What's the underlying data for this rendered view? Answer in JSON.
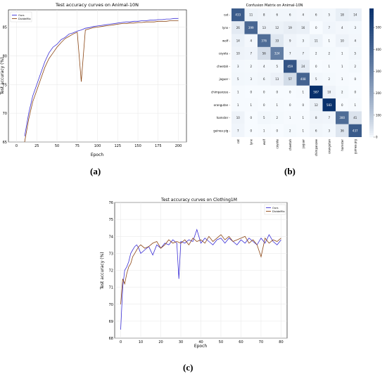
{
  "captions": {
    "a": "(a)",
    "b": "(b)",
    "c": "(c)"
  },
  "chart_data": [
    {
      "type": "line",
      "title": "Test accuracy curves on Animal-10N",
      "xlabel": "Epoch",
      "ylabel": "Test accuracy (%)",
      "xlim": [
        -10,
        210
      ],
      "ylim": [
        65,
        88
      ],
      "xticks": [
        0,
        25,
        50,
        75,
        100,
        125,
        150,
        175,
        200
      ],
      "yticks": [
        65,
        70,
        75,
        80,
        85
      ],
      "legend": "top-left",
      "series": [
        {
          "name": "Ours",
          "color": "#3b2fd6",
          "x": [
            10,
            15,
            20,
            25,
            30,
            35,
            40,
            45,
            50,
            55,
            60,
            65,
            70,
            75,
            80,
            85,
            90,
            95,
            100,
            105,
            110,
            115,
            120,
            125,
            130,
            135,
            140,
            145,
            150,
            155,
            160,
            165,
            170,
            175,
            180,
            185,
            190,
            195,
            200
          ],
          "y": [
            66,
            70,
            73,
            75,
            77,
            79,
            80.5,
            81.5,
            82,
            82.8,
            83.2,
            83.8,
            84,
            84.3,
            84.5,
            84.8,
            84.9,
            85.1,
            85.2,
            85.3,
            85.4,
            85.5,
            85.6,
            85.7,
            85.8,
            85.9,
            85.9,
            86,
            86,
            86.1,
            86.1,
            86.2,
            86.2,
            86.3,
            86.3,
            86.4,
            86.4,
            86.5,
            86.5
          ]
        },
        {
          "name": "DivideMix",
          "color": "#8b4513",
          "x": [
            10,
            15,
            20,
            25,
            30,
            35,
            40,
            45,
            50,
            55,
            60,
            65,
            70,
            75,
            80,
            85,
            90,
            95,
            100,
            105,
            110,
            115,
            120,
            125,
            130,
            135,
            140,
            145,
            150,
            155,
            160,
            165,
            170,
            175,
            180,
            185,
            190,
            195,
            200
          ],
          "y": [
            65,
            69,
            72,
            74,
            76,
            78,
            79.5,
            80.5,
            81.5,
            82.3,
            83,
            83.4,
            83.8,
            84.1,
            75.5,
            84.5,
            84.7,
            84.9,
            85,
            85.1,
            85.2,
            85.3,
            85.4,
            85.5,
            85.6,
            85.6,
            85.7,
            85.7,
            85.8,
            85.8,
            85.9,
            85.9,
            85.9,
            86,
            86,
            86,
            86.1,
            86.1,
            86.1
          ]
        }
      ]
    },
    {
      "type": "heatmap",
      "title": "Confusion Matrix on Animal-10N",
      "labels": [
        "cat",
        "lynx",
        "wolf",
        "coyote",
        "cheetah",
        "jaguar",
        "chimpanzee",
        "orangutan",
        "hamster",
        "guinea pig"
      ],
      "matrix": [
        [
          433,
          11,
          8,
          6,
          6,
          4,
          6,
          5,
          18,
          14
        ],
        [
          26,
          399,
          13,
          12,
          19,
          16,
          0,
          7,
          4,
          3
        ],
        [
          14,
          4,
          376,
          33,
          9,
          3,
          11,
          1,
          10,
          4
        ],
        [
          10,
          7,
          56,
          324,
          7,
          7,
          2,
          2,
          1,
          5
        ],
        [
          3,
          2,
          4,
          5,
          459,
          24,
          0,
          1,
          1,
          2
        ],
        [
          5,
          3,
          6,
          13,
          57,
          408,
          5,
          2,
          1,
          0
        ],
        [
          1,
          0,
          0,
          0,
          0,
          1,
          587,
          10,
          2,
          0
        ],
        [
          1,
          1,
          0,
          1,
          0,
          0,
          12,
          583,
          0,
          1
        ],
        [
          10,
          0,
          5,
          2,
          1,
          1,
          8,
          7,
          380,
          41
        ],
        [
          7,
          0,
          1,
          0,
          2,
          1,
          6,
          3,
          36,
          437
        ]
      ],
      "colorbar": {
        "min": 0,
        "max": 587,
        "ticks": [
          0,
          100,
          200,
          300,
          400,
          500
        ]
      }
    },
    {
      "type": "line",
      "title": "Test accuracy curves on Clothing1M",
      "xlabel": "Epoch",
      "ylabel": "Test accuracy (%)",
      "xlim": [
        -3,
        83
      ],
      "ylim": [
        68,
        76
      ],
      "xticks": [
        0,
        10,
        20,
        30,
        40,
        50,
        60,
        70,
        80
      ],
      "yticks": [
        68,
        69,
        70,
        71,
        72,
        73,
        74,
        75,
        76
      ],
      "legend": "top-right",
      "series": [
        {
          "name": "Ours",
          "color": "#3b2fd6",
          "x": [
            0,
            1,
            2,
            3,
            4,
            5,
            6,
            7,
            8,
            9,
            10,
            12,
            14,
            16,
            18,
            20,
            22,
            24,
            26,
            28,
            29,
            30,
            32,
            34,
            36,
            38,
            40,
            42,
            44,
            46,
            48,
            50,
            52,
            54,
            56,
            58,
            60,
            62,
            64,
            66,
            68,
            70,
            72,
            74,
            76,
            78,
            80
          ],
          "y": [
            68.5,
            71,
            72,
            72.2,
            72.5,
            73,
            73.2,
            73.4,
            73.5,
            73.3,
            73,
            73.2,
            73.4,
            72.9,
            73.5,
            73.3,
            73.6,
            73.5,
            73.8,
            73.6,
            71.5,
            73.7,
            73.6,
            73.8,
            73.7,
            74.4,
            73.6,
            73.9,
            73.7,
            73.5,
            73.8,
            73.9,
            73.6,
            73.9,
            73.7,
            73.5,
            73.8,
            73.6,
            73.9,
            73.7,
            73.5,
            73.9,
            73.6,
            74.1,
            73.7,
            73.5,
            73.8
          ]
        },
        {
          "name": "DivideMix",
          "color": "#8b4513",
          "x": [
            0,
            1,
            2,
            3,
            4,
            5,
            6,
            7,
            8,
            9,
            10,
            12,
            14,
            16,
            18,
            20,
            22,
            24,
            26,
            28,
            30,
            32,
            34,
            36,
            38,
            40,
            42,
            44,
            46,
            48,
            50,
            52,
            54,
            56,
            58,
            60,
            62,
            64,
            66,
            68,
            70,
            72,
            74,
            76,
            78,
            80
          ],
          "y": [
            70,
            71.5,
            71.2,
            71.8,
            72.2,
            72.4,
            72.8,
            73,
            73.2,
            73.4,
            73.5,
            73.3,
            73.4,
            73.6,
            73.7,
            73.3,
            73.5,
            73.8,
            73.6,
            73.7,
            73.6,
            73.8,
            73.5,
            73.9,
            73.7,
            73.8,
            73.6,
            74,
            73.7,
            73.9,
            74.1,
            73.8,
            74,
            73.7,
            73.8,
            73.9,
            74,
            73.6,
            73.8,
            73.5,
            72.8,
            73.9,
            73.6,
            73.8,
            73.7,
            73.9
          ]
        }
      ]
    }
  ]
}
